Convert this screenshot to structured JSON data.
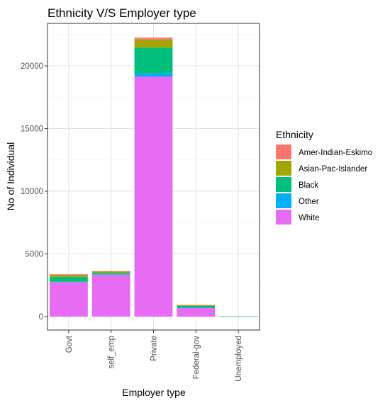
{
  "chart_data": {
    "type": "bar",
    "stacked": true,
    "title": "Ethnicity V/S Employer type",
    "xlabel": "Employer type",
    "ylabel": "No of Individual",
    "categories": [
      "Govt",
      "self_emp",
      "Private",
      "Federal-gov",
      "Unemployed"
    ],
    "ylim": [
      0,
      22300
    ],
    "yticks": [
      0,
      5000,
      10000,
      15000,
      20000
    ],
    "grid": true,
    "legend": {
      "title": "Ethnicity",
      "placement": "right"
    },
    "series": [
      {
        "name": "White",
        "color": "#E76BF3",
        "values": [
          2750,
          3350,
          19150,
          700,
          8
        ]
      },
      {
        "name": "Other",
        "color": "#00B0F6",
        "values": [
          30,
          20,
          250,
          10,
          0
        ]
      },
      {
        "name": "Black",
        "color": "#00BF7D",
        "values": [
          380,
          120,
          2050,
          140,
          2
        ]
      },
      {
        "name": "Asian-Pac-Islander",
        "color": "#A3A500",
        "values": [
          140,
          100,
          650,
          60,
          0
        ]
      },
      {
        "name": "Amer-Indian-Eskimo",
        "color": "#F8766D",
        "values": [
          80,
          40,
          150,
          20,
          0
        ]
      }
    ],
    "legend_order": [
      "Amer-Indian-Eskimo",
      "Asian-Pac-Islander",
      "Black",
      "Other",
      "White"
    ]
  }
}
